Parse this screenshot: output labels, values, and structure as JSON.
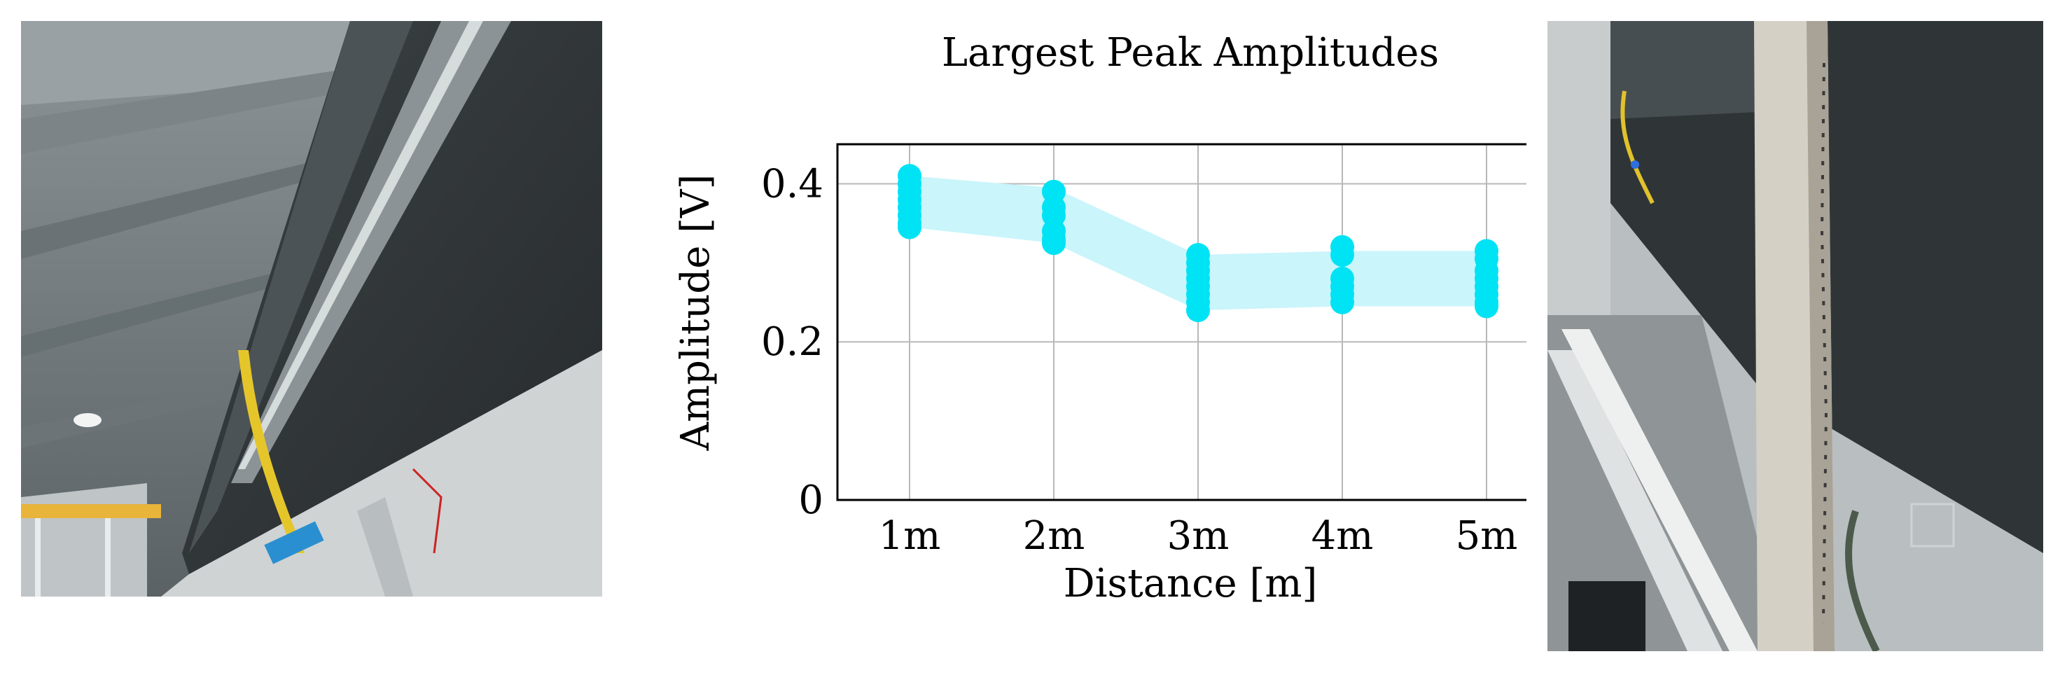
{
  "photos": {
    "left": {
      "subject": "steel-beam-ceiling-photo"
    },
    "right": {
      "subject": "beam-sensor-closeup-photo"
    }
  },
  "colors": {
    "band": "#c9f5fb",
    "points": "#00e3f5",
    "grid": "#b8b8b8",
    "axis": "#000000"
  },
  "chart_data": {
    "type": "scatter",
    "title": "Largest Peak Amplitudes",
    "xlabel": "Distance [m]",
    "ylabel": "Amplitude [V]",
    "categories": [
      "1m",
      "2m",
      "3m",
      "4m",
      "5m"
    ],
    "ylim": [
      0,
      0.45
    ],
    "yticks": [
      0,
      0.2,
      0.4
    ],
    "ytick_labels": [
      "0",
      "0.2",
      "0.4"
    ],
    "grid": true,
    "points": [
      [
        0.41,
        0.4,
        0.39,
        0.38,
        0.37,
        0.36,
        0.35,
        0.345
      ],
      [
        0.39,
        0.37,
        0.36,
        0.34,
        0.33,
        0.325
      ],
      [
        0.31,
        0.3,
        0.29,
        0.28,
        0.27,
        0.26,
        0.25,
        0.24
      ],
      [
        0.32,
        0.31,
        0.28,
        0.27,
        0.26,
        0.25
      ],
      [
        0.315,
        0.305,
        0.29,
        0.28,
        0.27,
        0.26,
        0.25,
        0.245
      ]
    ],
    "band": {
      "upper": [
        0.41,
        0.395,
        0.31,
        0.315,
        0.315
      ],
      "lower": [
        0.345,
        0.325,
        0.24,
        0.245,
        0.245
      ]
    }
  }
}
